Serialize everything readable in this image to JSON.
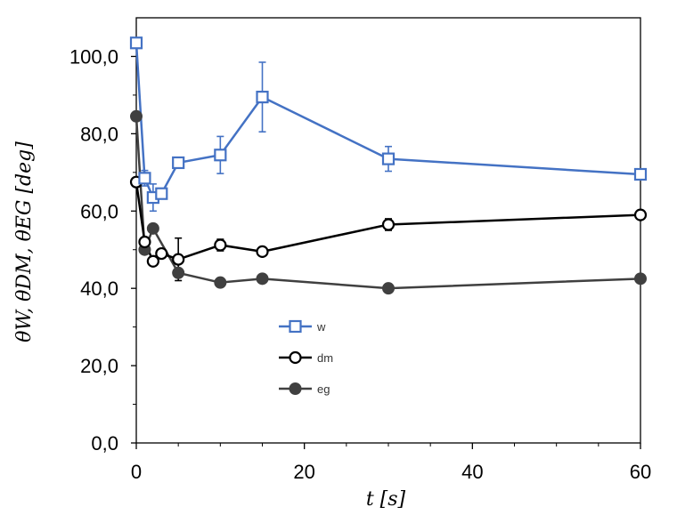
{
  "chart_data": {
    "type": "line",
    "xlabel": "t [s]",
    "ylabel": "θW, θDM, θEG [deg]",
    "xlim": [
      0,
      60
    ],
    "ylim": [
      0,
      110
    ],
    "xticks": [
      "0",
      "20",
      "40",
      "60"
    ],
    "yticks": [
      "0,0",
      "20,0",
      "40,0",
      "60,0",
      "80,0",
      "100,0"
    ],
    "grid": false,
    "legend_position": "center-left",
    "series": [
      {
        "name": "w",
        "color": "#4472C4",
        "marker": "open-square",
        "points": [
          {
            "x": 0,
            "y": 103.5
          },
          {
            "x": 1,
            "y": 68.5,
            "err": 2
          },
          {
            "x": 2,
            "y": 63.5,
            "err": 3.5
          },
          {
            "x": 3,
            "y": 64.5
          },
          {
            "x": 5,
            "y": 72.5
          },
          {
            "x": 10,
            "y": 74.5,
            "err": 4.8
          },
          {
            "x": 15,
            "y": 89.5,
            "err": 9
          },
          {
            "x": 30,
            "y": 73.5,
            "err": 3.2
          },
          {
            "x": 60,
            "y": 69.5
          }
        ]
      },
      {
        "name": "dm",
        "color": "#000000",
        "marker": "open-circle",
        "points": [
          {
            "x": 0,
            "y": 67.5
          },
          {
            "x": 1,
            "y": 52
          },
          {
            "x": 2,
            "y": 47
          },
          {
            "x": 3,
            "y": 49
          },
          {
            "x": 5,
            "y": 47.5,
            "err": 5.5
          },
          {
            "x": 10,
            "y": 51.2,
            "err": 1.5
          },
          {
            "x": 15,
            "y": 49.5
          },
          {
            "x": 30,
            "y": 56.5,
            "err": 1.5
          },
          {
            "x": 60,
            "y": 59
          }
        ]
      },
      {
        "name": "eg",
        "color": "#404040",
        "marker": "filled-circle",
        "points": [
          {
            "x": 0,
            "y": 84.5
          },
          {
            "x": 1,
            "y": 50
          },
          {
            "x": 2,
            "y": 55.5
          },
          {
            "x": 5,
            "y": 44
          },
          {
            "x": 10,
            "y": 41.5
          },
          {
            "x": 15,
            "y": 42.5
          },
          {
            "x": 30,
            "y": 40
          },
          {
            "x": 60,
            "y": 42.5
          }
        ]
      }
    ]
  }
}
